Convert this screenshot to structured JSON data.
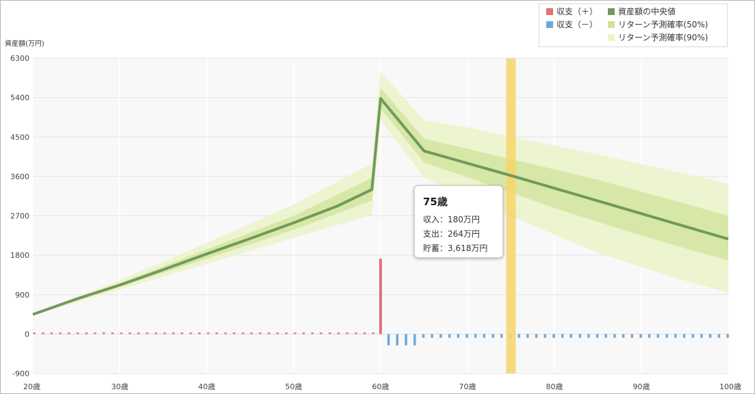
{
  "y_axis_title": "資産額(万円)",
  "legend": {
    "items": [
      {
        "label": "収支（＋）",
        "color": "#e07373"
      },
      {
        "label": "資産額の中央値",
        "color": "#6f9a5c"
      },
      {
        "label": "収支（－）",
        "color": "#6fa8d6"
      },
      {
        "label": "リターン予測確率(50%)",
        "color": "#cfe39a"
      },
      {
        "label": "リターン予測確率(90%)",
        "color": "#ebf3c9"
      }
    ]
  },
  "tooltip": {
    "title": "75歳",
    "lines": [
      "収入：180万円",
      "支出：264万円",
      "貯蓄：3,618万円"
    ]
  },
  "colors": {
    "plot_background": "#f8f8f8",
    "grid": "#e4e4e4",
    "vertical_grid": "#ffffff",
    "median_line": "#6f9a5c",
    "band_50": "#cfe39a",
    "band_90": "#ebf3c9",
    "positive_bar": "#e07373",
    "negative_bar": "#6fa8d6",
    "highlight": "#f7d56a"
  },
  "chart_data": {
    "type": "line",
    "xlabel": "",
    "ylabel": "資産額(万円)",
    "xlim": [
      20,
      100
    ],
    "ylim": [
      -900,
      6300
    ],
    "x_ticks": [
      20,
      30,
      40,
      50,
      60,
      70,
      80,
      90,
      100
    ],
    "x_tick_labels": [
      "20歳",
      "30歳",
      "40歳",
      "50歳",
      "60歳",
      "70歳",
      "80歳",
      "90歳",
      "100歳"
    ],
    "y_ticks": [
      -900,
      0,
      900,
      1800,
      2700,
      3600,
      4500,
      5400,
      6300
    ],
    "y_tick_labels": [
      "-900",
      "0",
      "900",
      "1800",
      "2700",
      "3600",
      "4500",
      "5400",
      "6300"
    ],
    "grid": true,
    "legend_position": "top-right",
    "highlight_x": 75,
    "series": [
      {
        "name": "資産額の中央値",
        "x": [
          20,
          25,
          30,
          35,
          40,
          45,
          50,
          55,
          59,
          60,
          65,
          70,
          75,
          80,
          85,
          90,
          95,
          100
        ],
        "values": [
          450,
          800,
          1120,
          1470,
          1830,
          2180,
          2540,
          2920,
          3300,
          5380,
          4180,
          3900,
          3618,
          3330,
          3040,
          2750,
          2460,
          2170
        ]
      },
      {
        "name": "リターン予測確率(50%)",
        "x": [
          20,
          30,
          40,
          50,
          59,
          60,
          65,
          70,
          75,
          80,
          85,
          90,
          95,
          100
        ],
        "lower": [
          440,
          1080,
          1720,
          2380,
          3050,
          5150,
          3920,
          3580,
          3230,
          2880,
          2560,
          2250,
          1960,
          1680
        ],
        "upper": [
          460,
          1160,
          1930,
          2700,
          3560,
          5620,
          4460,
          4230,
          3990,
          3760,
          3520,
          3250,
          2980,
          2700
        ]
      },
      {
        "name": "リターン予測確率(90%)",
        "x": [
          20,
          30,
          40,
          50,
          59,
          60,
          65,
          70,
          75,
          80,
          85,
          90,
          95,
          100
        ],
        "lower": [
          430,
          1020,
          1600,
          2200,
          2720,
          4880,
          3580,
          3140,
          2700,
          2270,
          1860,
          1530,
          1220,
          950
        ],
        "upper": [
          470,
          1230,
          2080,
          2960,
          3890,
          5990,
          4880,
          4720,
          4500,
          4300,
          4100,
          3880,
          3660,
          3430
        ]
      },
      {
        "name": "収支（＋）",
        "type": "bar",
        "x": [
          20,
          21,
          22,
          23,
          24,
          25,
          26,
          27,
          28,
          29,
          30,
          31,
          32,
          33,
          34,
          35,
          36,
          37,
          38,
          39,
          40,
          41,
          42,
          43,
          44,
          45,
          46,
          47,
          48,
          49,
          50,
          51,
          52,
          53,
          54,
          55,
          56,
          57,
          58,
          59,
          60
        ],
        "values": [
          35,
          35,
          35,
          35,
          35,
          35,
          35,
          35,
          35,
          35,
          35,
          35,
          35,
          35,
          35,
          35,
          35,
          35,
          35,
          35,
          35,
          35,
          35,
          35,
          35,
          35,
          35,
          35,
          35,
          35,
          35,
          35,
          35,
          35,
          35,
          35,
          35,
          35,
          35,
          35,
          1720
        ]
      },
      {
        "name": "収支（－）",
        "type": "bar",
        "x": [
          61,
          62,
          63,
          64,
          65,
          66,
          67,
          68,
          69,
          70,
          71,
          72,
          73,
          74,
          75,
          76,
          77,
          78,
          79,
          80,
          81,
          82,
          83,
          84,
          85,
          86,
          87,
          88,
          89,
          90,
          91,
          92,
          93,
          94,
          95,
          96,
          97,
          98,
          99,
          100
        ],
        "values": [
          -260,
          -260,
          -260,
          -260,
          -84,
          -84,
          -84,
          -84,
          -84,
          -84,
          -84,
          -84,
          -84,
          -84,
          -84,
          -84,
          -84,
          -84,
          -84,
          -84,
          -84,
          -84,
          -84,
          -84,
          -84,
          -84,
          -84,
          -84,
          -84,
          -84,
          -84,
          -84,
          -84,
          -84,
          -84,
          -84,
          -84,
          -84,
          -84,
          -84
        ]
      }
    ]
  }
}
